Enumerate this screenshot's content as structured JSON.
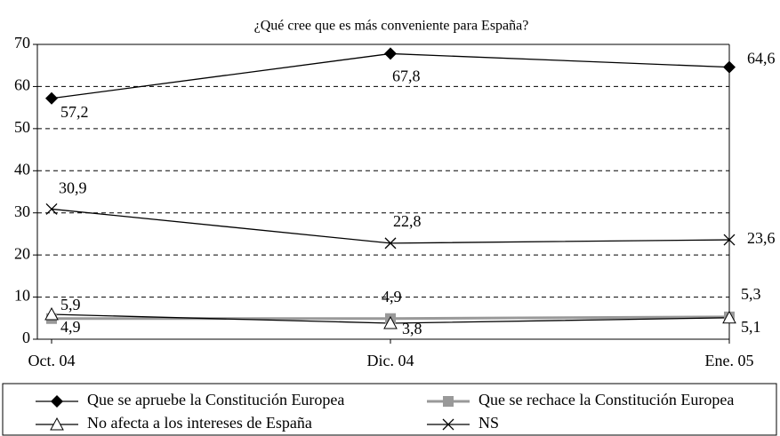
{
  "chart_data": {
    "type": "line",
    "title": "¿Qué cree que es más conveniente para España?",
    "categories": [
      "Oct. 04",
      "Dic. 04",
      "Ene. 05"
    ],
    "series": [
      {
        "name": "Que se apruebe la Constitución Europea",
        "color": "#000000",
        "marker": "diamond",
        "values": [
          57.2,
          67.8,
          64.6
        ],
        "value_labels": [
          "57,2",
          "67,8",
          "64,6"
        ]
      },
      {
        "name": "Que se rechace la Constitución Europea",
        "color": "#999999",
        "marker": "square",
        "values": [
          4.9,
          4.9,
          5.3
        ],
        "value_labels": [
          "4,9",
          "4,9",
          "5,3"
        ]
      },
      {
        "name": "No afecta a los intereses de España",
        "color": "#000000",
        "marker": "triangle",
        "values": [
          5.9,
          3.8,
          5.1
        ],
        "value_labels": [
          "5,9",
          "3,8",
          "5,1"
        ]
      },
      {
        "name": "NS",
        "color": "#000000",
        "marker": "x",
        "values": [
          30.9,
          22.8,
          23.6
        ],
        "value_labels": [
          "30,9",
          "22,8",
          "23,6"
        ]
      }
    ],
    "ylim": [
      0,
      70
    ],
    "yticks": [
      0,
      10,
      20,
      30,
      40,
      50,
      60,
      70
    ],
    "grid": true,
    "legend": "bottom"
  }
}
